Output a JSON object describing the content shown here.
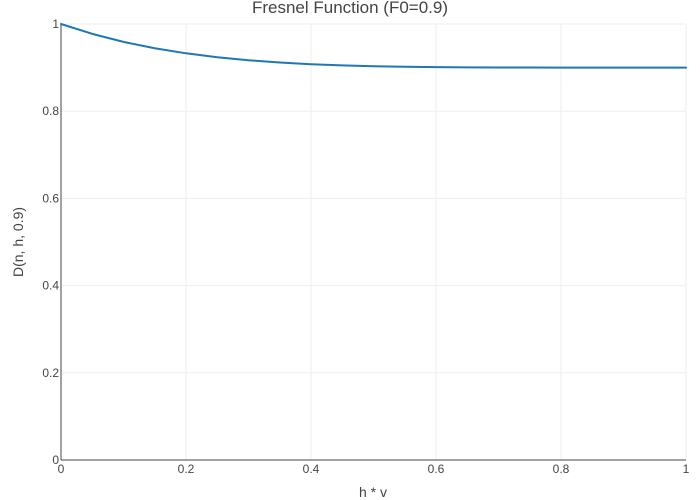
{
  "chart_data": {
    "type": "line",
    "title": "Fresnel Function (F0=0.9)",
    "xlabel": "h * v",
    "ylabel": "D(n, h, 0.9)",
    "xlim": [
      0,
      1
    ],
    "ylim": [
      0,
      1
    ],
    "x_ticks": [
      0,
      0.2,
      0.4,
      0.6,
      0.8,
      1
    ],
    "y_ticks": [
      0,
      0.2,
      0.4,
      0.6,
      0.8,
      1
    ],
    "x_tick_labels": [
      "0",
      "0.2",
      "0.4",
      "0.6",
      "0.8",
      "1"
    ],
    "y_tick_labels": [
      "0",
      "0.2",
      "0.4",
      "0.6",
      "0.8",
      "1"
    ],
    "grid": true,
    "line_color": "#1f77b4",
    "series": [
      {
        "x": [
          0,
          0.05,
          0.1,
          0.15,
          0.2,
          0.25,
          0.3,
          0.35,
          0.4,
          0.45,
          0.5,
          0.55,
          0.6,
          0.65,
          0.7,
          0.75,
          0.8,
          0.85,
          0.9,
          0.95,
          1
        ],
        "y": [
          1.0,
          0.9774,
          0.959,
          0.9443,
          0.9328,
          0.9238,
          0.9168,
          0.9116,
          0.9078,
          0.905,
          0.9031,
          0.9019,
          0.901,
          0.9005,
          0.9002,
          0.9001,
          0.9,
          0.9,
          0.9,
          0.9,
          0.9
        ]
      }
    ]
  }
}
